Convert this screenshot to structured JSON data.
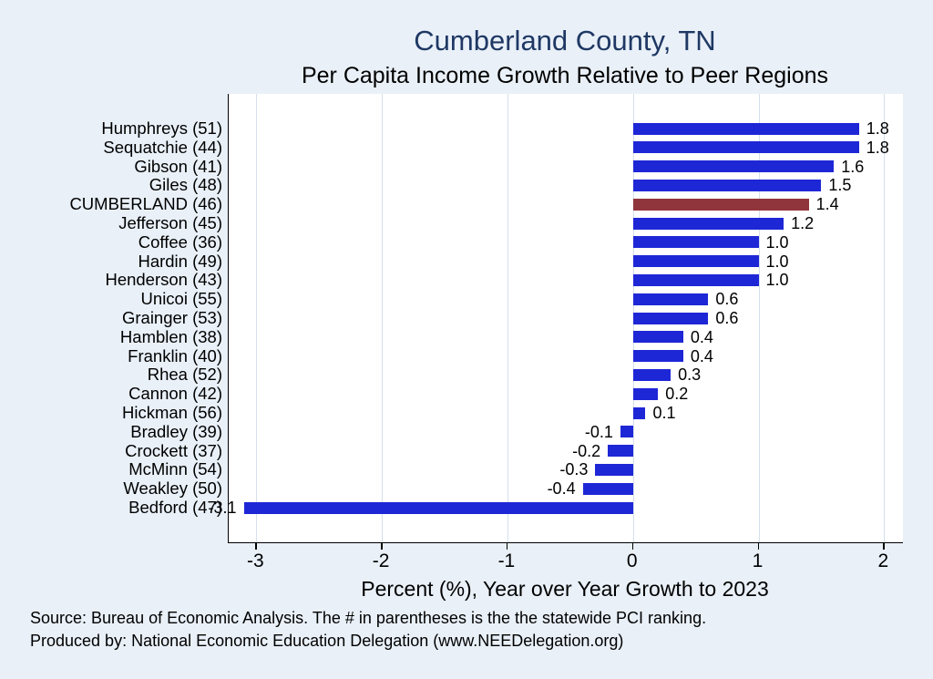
{
  "header": {
    "title": "Cumberland County, TN",
    "subtitle": "Per Capita Income Growth Relative to Peer Regions"
  },
  "chart_data": {
    "type": "bar",
    "orientation": "horizontal",
    "title": "Cumberland County, TN",
    "subtitle": "Per Capita Income Growth Relative to Peer Regions",
    "xlabel": "Percent (%), Year over Year Growth to 2023",
    "categories": [
      "Humphreys (51)",
      "Sequatchie (44)",
      "Gibson (41)",
      "Giles (48)",
      "CUMBERLAND (46)",
      "Jefferson (45)",
      "Coffee (36)",
      "Hardin (49)",
      "Henderson (43)",
      "Unicoi (55)",
      "Grainger (53)",
      "Hamblen (38)",
      "Franklin (40)",
      "Rhea (52)",
      "Cannon (42)",
      "Hickman (56)",
      "Bradley (39)",
      "Crockett (37)",
      "McMinn (54)",
      "Weakley (50)",
      "Bedford (47)"
    ],
    "values": [
      1.8,
      1.8,
      1.6,
      1.5,
      1.4,
      1.2,
      1.0,
      1.0,
      1.0,
      0.6,
      0.6,
      0.4,
      0.4,
      0.3,
      0.2,
      0.1,
      -0.1,
      -0.2,
      -0.3,
      -0.4,
      -3.1
    ],
    "value_labels": [
      "1.8",
      "1.8",
      "1.6",
      "1.5",
      "1.4",
      "1.2",
      "1.0",
      "1.0",
      "1.0",
      "0.6",
      "0.6",
      "0.4",
      "0.4",
      "0.3",
      "0.2",
      "0.1",
      "-0.1",
      "-0.2",
      "-0.3",
      "-0.4",
      "-3.1"
    ],
    "highlight_index": 4,
    "highlight_category": "CUMBERLAND (46)",
    "x_ticks": [
      -3,
      -2,
      -1,
      0,
      1,
      2
    ],
    "xlim": [
      -3.22,
      2.15
    ],
    "grid": true,
    "legend": false,
    "colors": {
      "bar": "#1e27d6",
      "highlight": "#90353b",
      "title": "#1f3864",
      "background": "#e9f0f8",
      "grid": "#d4e0ec",
      "axis": "#000000"
    }
  },
  "footer": {
    "source": "Source: Bureau of Economic Analysis. The # in parentheses is the the statewide PCI ranking.",
    "produced": "Produced by: National Economic Education Delegation (www.NEEDelegation.org)"
  }
}
